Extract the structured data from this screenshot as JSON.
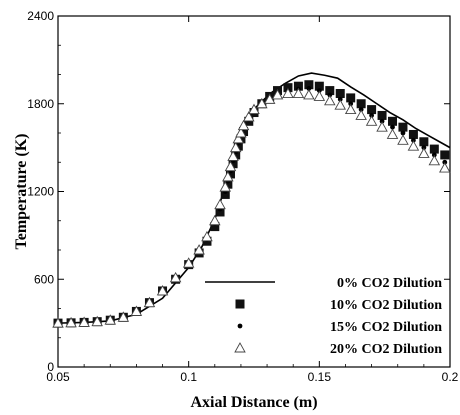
{
  "chart_data": {
    "type": "scatter",
    "xlabel": "Axial Distance (m)",
    "ylabel": "Temperature (K)",
    "xlim": [
      0.05,
      0.2
    ],
    "ylim": [
      0,
      2400
    ],
    "x_ticks": [
      0.05,
      0.1,
      0.15,
      0.2
    ],
    "x_tick_labels": [
      "0.05",
      "0.1",
      "0.15",
      "0.2"
    ],
    "y_ticks": [
      0,
      600,
      1200,
      1800,
      2400
    ],
    "y_tick_labels": [
      "0",
      "600",
      "1200",
      "1800",
      "2400"
    ],
    "grid": false,
    "legend_position": "bottom-right",
    "series": [
      {
        "name": "0% CO2 Dilution",
        "marker": "line",
        "x": [
          0.05,
          0.06,
          0.07,
          0.08,
          0.09,
          0.1,
          0.105,
          0.11,
          0.113,
          0.116,
          0.118,
          0.12,
          0.123,
          0.127,
          0.132,
          0.137,
          0.142,
          0.147,
          0.152,
          0.157,
          0.162,
          0.167,
          0.172,
          0.177,
          0.182,
          0.187,
          0.192,
          0.197,
          0.2
        ],
        "y": [
          300,
          305,
          315,
          360,
          470,
          680,
          820,
          1010,
          1180,
          1370,
          1480,
          1620,
          1720,
          1800,
          1880,
          1940,
          1990,
          2010,
          1995,
          1975,
          1915,
          1860,
          1800,
          1740,
          1690,
          1630,
          1580,
          1530,
          1500
        ]
      },
      {
        "name": "10% CO2 Dilution",
        "marker": "square",
        "x": [
          0.05,
          0.055,
          0.06,
          0.065,
          0.07,
          0.075,
          0.08,
          0.085,
          0.09,
          0.095,
          0.1,
          0.104,
          0.107,
          0.11,
          0.112,
          0.114,
          0.115,
          0.116,
          0.117,
          0.118,
          0.119,
          0.12,
          0.121,
          0.123,
          0.125,
          0.128,
          0.131,
          0.134,
          0.138,
          0.142,
          0.146,
          0.15,
          0.154,
          0.158,
          0.162,
          0.166,
          0.17,
          0.174,
          0.178,
          0.182,
          0.186,
          0.19,
          0.194,
          0.198
        ],
        "y": [
          300,
          302,
          305,
          310,
          320,
          340,
          380,
          440,
          520,
          600,
          700,
          780,
          860,
          960,
          1060,
          1180,
          1250,
          1320,
          1390,
          1450,
          1510,
          1560,
          1610,
          1680,
          1740,
          1800,
          1850,
          1890,
          1910,
          1920,
          1930,
          1920,
          1890,
          1870,
          1840,
          1800,
          1760,
          1720,
          1680,
          1640,
          1590,
          1540,
          1490,
          1450
        ]
      },
      {
        "name": "15% CO2 Dilution",
        "marker": "dot",
        "x": [
          0.05,
          0.055,
          0.06,
          0.065,
          0.07,
          0.075,
          0.08,
          0.085,
          0.09,
          0.095,
          0.1,
          0.104,
          0.107,
          0.11,
          0.112,
          0.114,
          0.115,
          0.116,
          0.117,
          0.118,
          0.119,
          0.12,
          0.121,
          0.123,
          0.125,
          0.128,
          0.131,
          0.134,
          0.138,
          0.142,
          0.146,
          0.15,
          0.154,
          0.158,
          0.162,
          0.166,
          0.17,
          0.174,
          0.178,
          0.182,
          0.186,
          0.19,
          0.194,
          0.198
        ],
        "y": [
          300,
          302,
          305,
          310,
          320,
          340,
          380,
          440,
          520,
          600,
          700,
          790,
          870,
          980,
          1080,
          1200,
          1270,
          1340,
          1410,
          1470,
          1530,
          1580,
          1630,
          1690,
          1750,
          1800,
          1840,
          1870,
          1890,
          1900,
          1905,
          1890,
          1860,
          1830,
          1800,
          1760,
          1720,
          1680,
          1640,
          1600,
          1550,
          1500,
          1450,
          1400
        ]
      },
      {
        "name": "20% CO2 Dilution",
        "marker": "triangle",
        "x": [
          0.05,
          0.055,
          0.06,
          0.065,
          0.07,
          0.075,
          0.08,
          0.085,
          0.09,
          0.095,
          0.1,
          0.104,
          0.107,
          0.11,
          0.112,
          0.114,
          0.115,
          0.116,
          0.117,
          0.118,
          0.119,
          0.12,
          0.121,
          0.123,
          0.125,
          0.128,
          0.131,
          0.134,
          0.138,
          0.142,
          0.146,
          0.15,
          0.154,
          0.158,
          0.162,
          0.166,
          0.17,
          0.174,
          0.178,
          0.182,
          0.186,
          0.19,
          0.194,
          0.198
        ],
        "y": [
          300,
          302,
          305,
          310,
          320,
          340,
          380,
          440,
          520,
          610,
          710,
          800,
          890,
          1000,
          1110,
          1230,
          1300,
          1370,
          1440,
          1500,
          1560,
          1600,
          1650,
          1710,
          1760,
          1800,
          1830,
          1860,
          1870,
          1870,
          1860,
          1850,
          1820,
          1790,
          1760,
          1720,
          1680,
          1640,
          1590,
          1550,
          1510,
          1460,
          1410,
          1360
        ]
      }
    ]
  }
}
